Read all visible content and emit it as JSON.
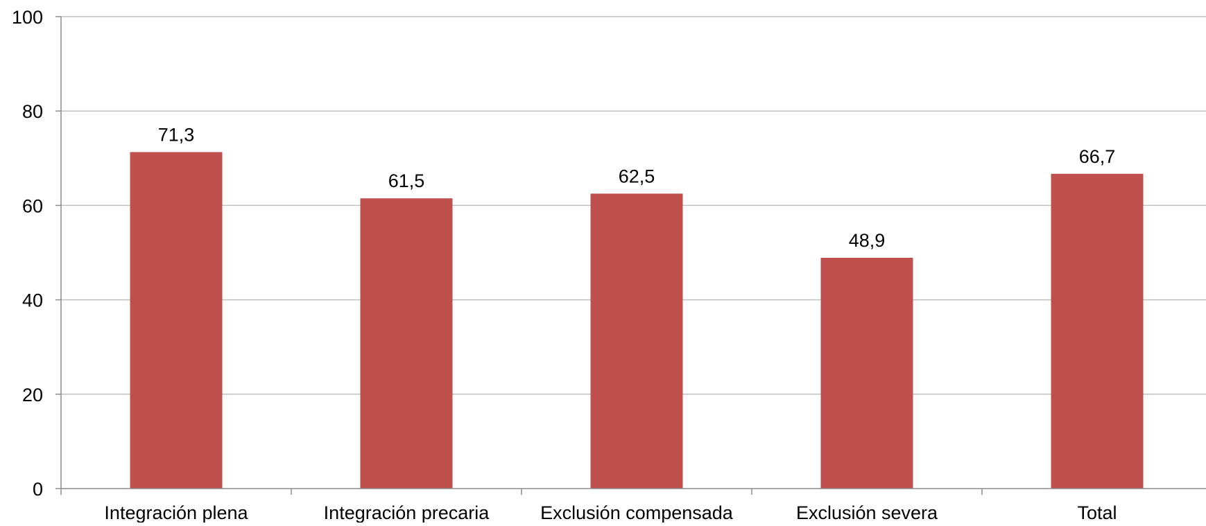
{
  "chart_data": {
    "type": "bar",
    "title": "",
    "xlabel": "",
    "ylabel": "",
    "categories": [
      "Integración plena",
      "Integración precaria",
      "Exclusión compensada",
      "Exclusión severa",
      "Total"
    ],
    "values": [
      71.3,
      61.5,
      62.5,
      48.9,
      66.7
    ],
    "data_labels": [
      "71,3",
      "61,5",
      "62,5",
      "48,9",
      "66,7"
    ],
    "ylim": [
      0,
      100
    ],
    "yticks": [
      0,
      20,
      40,
      60,
      80,
      100
    ],
    "ytick_labels": [
      "0",
      "20",
      "40",
      "60",
      "80",
      "100"
    ],
    "grid": true,
    "legend": "none",
    "colors": {
      "bar": "#C0504D",
      "grid": "#BFBFBF",
      "axis": "#8C8C8C",
      "text": "#000000"
    }
  }
}
